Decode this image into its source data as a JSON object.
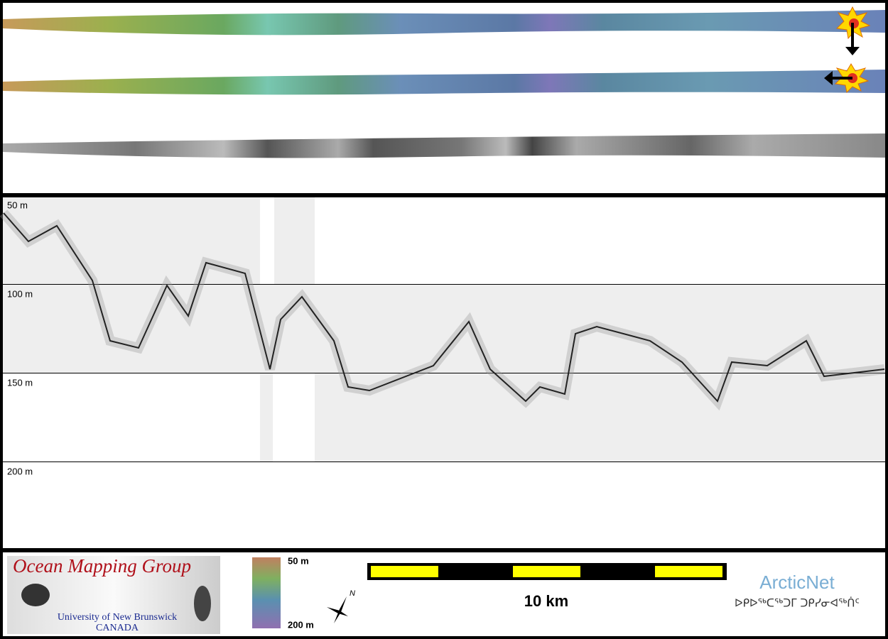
{
  "depth_labels": [
    "50 m",
    "100 m",
    "150 m",
    "200 m"
  ],
  "logo": {
    "title": "Ocean Mapping Group",
    "university": "University of New Brunswick",
    "country": "CANADA"
  },
  "colorbar": {
    "top": "50 m",
    "bottom": "200 m"
  },
  "north": "N",
  "scale_bar": "10 km",
  "partner": {
    "name": "ArcticNet",
    "syllabics": "ᐅᑭᐅᖅᑕᖅᑐᒥ ᑐᑭᓯᓂᐊᖅᑏᑦ"
  }
}
